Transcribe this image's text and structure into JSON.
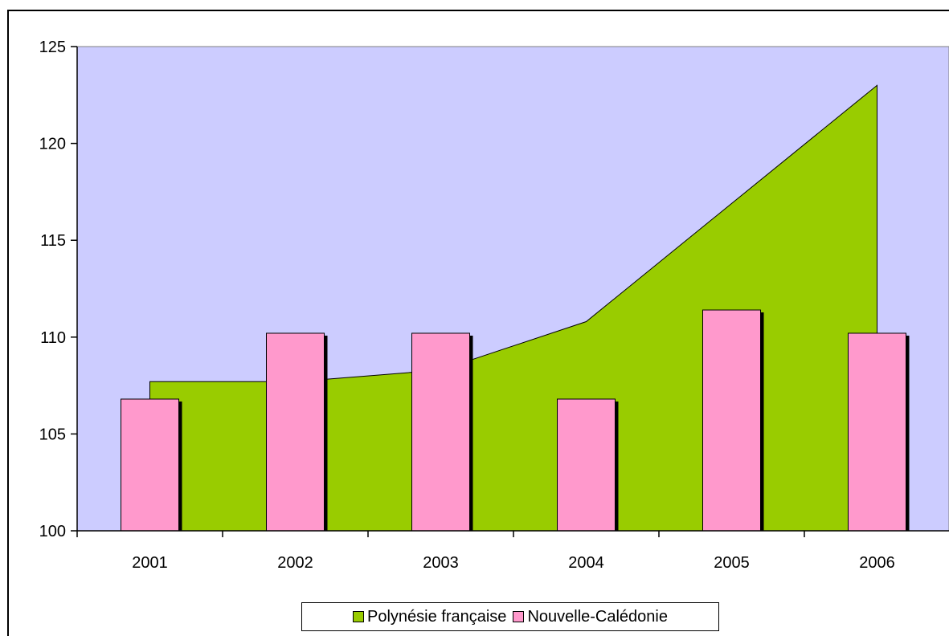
{
  "chart_data": {
    "type": "bar",
    "categories": [
      "2001",
      "2002",
      "2003",
      "2004",
      "2005",
      "2006"
    ],
    "series": [
      {
        "name": "Polynésie française",
        "kind": "area",
        "color": "#99cc00",
        "values": [
          107.7,
          107.7,
          108.3,
          110.8,
          116.9,
          123.0
        ]
      },
      {
        "name": "Nouvelle-Calédonie",
        "kind": "bar",
        "color": "#ff99cc",
        "values": [
          106.8,
          110.2,
          110.2,
          106.8,
          111.4,
          110.2
        ]
      }
    ],
    "ylim": [
      100,
      125
    ],
    "yticks": [
      100,
      105,
      110,
      115,
      120,
      125
    ],
    "plot_background": "#ccccff",
    "grid": false,
    "legend_position": "bottom"
  },
  "legend": {
    "items": [
      {
        "label": "Polynésie française",
        "color": "#99cc00"
      },
      {
        "label": "Nouvelle-Calédonie",
        "color": "#ff99cc"
      }
    ]
  }
}
